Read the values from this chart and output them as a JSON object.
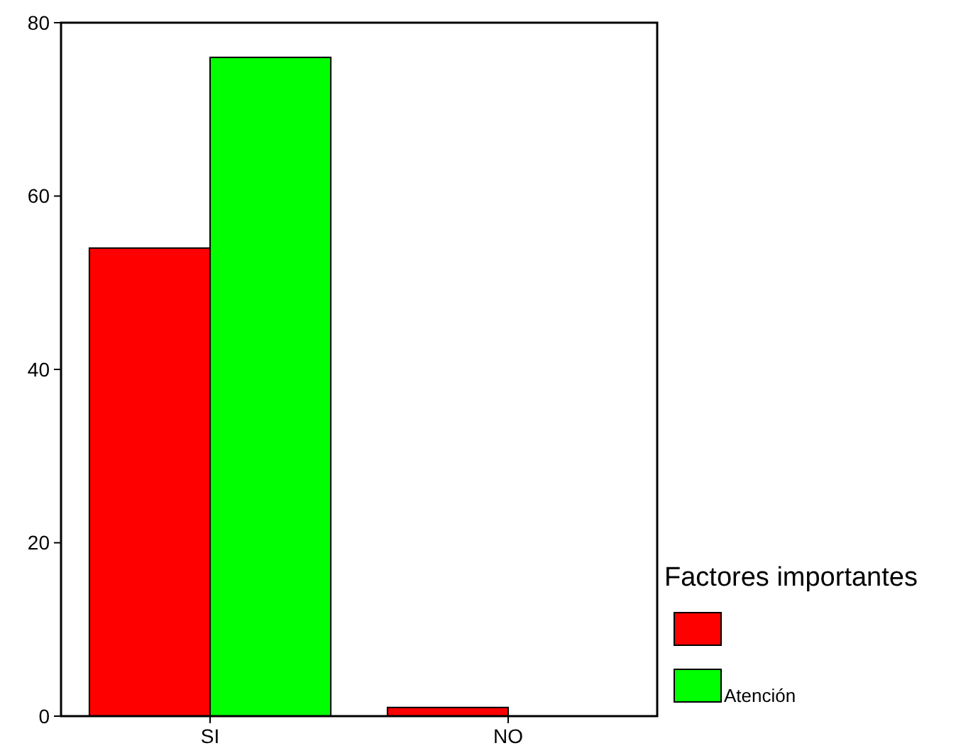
{
  "chart_data": {
    "type": "bar",
    "categories": [
      "SI",
      "NO"
    ],
    "legend_title": "Factores importantes",
    "legend": "bottom right",
    "ylim": [
      0,
      80
    ],
    "yticks": [
      0,
      20,
      40,
      60,
      80
    ],
    "grid": false,
    "series": [
      {
        "color": "#ff0000",
        "values": [
          54,
          1
        ]
      },
      {
        "name": "Atención",
        "color": "#00ff00",
        "values": [
          76,
          0
        ]
      }
    ]
  }
}
